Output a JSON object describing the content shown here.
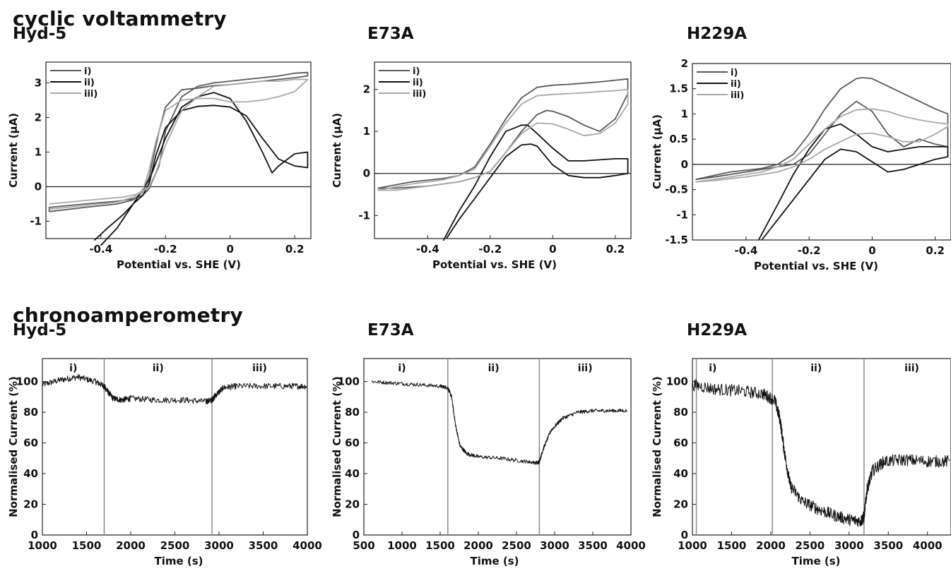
{
  "sections": {
    "cv_title": "cyclic voltammetry",
    "ca_title": "chronoamperometry"
  },
  "colors": {
    "trace_i": "#5a5a5a",
    "trace_ii": "#111111",
    "trace_iii": "#a8a8a8",
    "axis": "#222222",
    "divider": "#8a8a8a"
  },
  "chart_data": [
    {
      "type": "line",
      "title": "Hyd-5",
      "xlabel": "Potential vs. SHE  (V)",
      "ylabel": "Current (µA)",
      "xlim": [
        -0.57,
        0.25
      ],
      "ylim": [
        -1.5,
        3.6
      ],
      "xticks": [
        -0.4,
        -0.2,
        0,
        0.2
      ],
      "xtick_labels": [
        "-0.4",
        "-0.2",
        "0",
        "0.2"
      ],
      "yticks": [
        -1,
        0,
        1,
        2,
        3
      ],
      "ytick_labels": [
        "-1",
        "0",
        "1",
        "2",
        "3"
      ],
      "zero_line": true,
      "legend": [
        "i)",
        "ii)",
        "iii)"
      ],
      "legend_position": "top-left",
      "series": [
        {
          "name": "i)",
          "x": [
            -0.56,
            -0.45,
            -0.35,
            -0.3,
            -0.27,
            -0.25,
            -0.22,
            -0.2,
            -0.15,
            -0.1,
            -0.05,
            0,
            0.05,
            0.1,
            0.15,
            0.2,
            0.24,
            0.24,
            0.2,
            0.15,
            0.1,
            0.05,
            0,
            -0.05,
            -0.1,
            -0.15,
            -0.2,
            -0.22,
            -0.25,
            -0.27,
            -0.3,
            -0.35,
            -0.45,
            -0.56,
            -0.56
          ],
          "y": [
            -0.72,
            -0.6,
            -0.5,
            -0.38,
            -0.15,
            0.3,
            1.6,
            2.3,
            2.8,
            2.85,
            2.92,
            2.95,
            3,
            3.05,
            3.1,
            3.15,
            3.2,
            3.3,
            3.28,
            3.2,
            3.15,
            3.1,
            3.05,
            3,
            2.9,
            2.6,
            1.6,
            0.6,
            -0.05,
            -0.25,
            -0.35,
            -0.42,
            -0.5,
            -0.6,
            -0.72
          ]
        },
        {
          "name": "ii)",
          "x": [
            -0.42,
            -0.38,
            -0.33,
            -0.3,
            -0.27,
            -0.25,
            -0.23,
            -0.2,
            -0.15,
            -0.1,
            -0.05,
            0,
            0.05,
            0.1,
            0.15,
            0.2,
            0.24,
            0.24,
            0.2,
            0.15,
            0.13,
            0.1,
            0.05,
            0,
            -0.05,
            -0.1,
            -0.15,
            -0.2,
            -0.25,
            -0.3,
            -0.35,
            -0.4
          ],
          "y": [
            -1.55,
            -1.2,
            -0.8,
            -0.5,
            -0.25,
            0.1,
            0.9,
            1.7,
            2.2,
            2.32,
            2.35,
            2.3,
            2.05,
            1.4,
            0.8,
            0.6,
            0.55,
            1.0,
            0.95,
            0.6,
            0.4,
            1.0,
            1.9,
            2.55,
            2.72,
            2.6,
            2.3,
            1.4,
            0.2,
            -0.5,
            -1.2,
            -1.7
          ]
        },
        {
          "name": "iii)",
          "x": [
            -0.56,
            -0.45,
            -0.35,
            -0.3,
            -0.27,
            -0.25,
            -0.23,
            -0.2,
            -0.15,
            -0.1,
            -0.05,
            0,
            0.05,
            0.1,
            0.15,
            0.2,
            0.24,
            0.24,
            0.2,
            0.15,
            0.1,
            0.05,
            0,
            -0.05,
            -0.1,
            -0.15,
            -0.2,
            -0.23,
            -0.25,
            -0.28,
            -0.33,
            -0.45,
            -0.56
          ],
          "y": [
            -0.65,
            -0.55,
            -0.45,
            -0.3,
            -0.1,
            0.5,
            1.3,
            2.2,
            2.5,
            2.55,
            2.55,
            2.45,
            2.45,
            2.5,
            2.6,
            2.75,
            3.1,
            3.1,
            3.1,
            3.05,
            3.05,
            3.0,
            2.95,
            2.9,
            2.6,
            2.2,
            1.2,
            0.4,
            0.0,
            -0.2,
            -0.3,
            -0.4,
            -0.5
          ]
        }
      ]
    },
    {
      "type": "line",
      "title": "E73A",
      "xlabel": "Potential vs. SHE (V)",
      "ylabel": "Current (µA)",
      "xlim": [
        -0.57,
        0.25
      ],
      "ylim": [
        -1.55,
        2.65
      ],
      "xticks": [
        -0.4,
        -0.2,
        0,
        0.2
      ],
      "xtick_labels": [
        "-0.4",
        "-0.2",
        "0",
        "0.2"
      ],
      "yticks": [
        -1,
        0,
        1,
        2
      ],
      "ytick_labels": [
        "-1",
        "0",
        "1",
        "2"
      ],
      "zero_line": true,
      "legend": [
        "i)",
        "ii)",
        "iii)"
      ],
      "legend_position": "top-left",
      "series": [
        {
          "name": "i)",
          "x": [
            -0.56,
            -0.45,
            -0.35,
            -0.3,
            -0.25,
            -0.2,
            -0.15,
            -0.1,
            -0.05,
            0,
            0.05,
            0.1,
            0.15,
            0.2,
            0.24,
            0.24,
            0.2,
            0.15,
            0.1,
            0.05,
            0,
            -0.02,
            -0.05,
            -0.1,
            -0.15,
            -0.2,
            -0.25,
            -0.3,
            -0.4,
            -0.5,
            -0.56
          ],
          "y": [
            -0.35,
            -0.2,
            -0.12,
            -0.05,
            0.15,
            0.7,
            1.3,
            1.8,
            2.05,
            2.1,
            2.12,
            2.15,
            2.18,
            2.22,
            2.25,
            1.9,
            1.3,
            1.0,
            1.15,
            1.35,
            1.48,
            1.5,
            1.4,
            1.0,
            0.5,
            0.05,
            -0.1,
            -0.2,
            -0.3,
            -0.35,
            -0.35
          ]
        },
        {
          "name": "ii)",
          "x": [
            -0.34,
            -0.3,
            -0.25,
            -0.2,
            -0.15,
            -0.1,
            -0.07,
            -0.05,
            0,
            0.05,
            0.1,
            0.15,
            0.2,
            0.24,
            0.24,
            0.2,
            0.1,
            0.05,
            0,
            -0.05,
            -0.08,
            -0.1,
            -0.15,
            -0.2,
            -0.25,
            -0.3,
            -0.35
          ],
          "y": [
            -1.55,
            -1.1,
            -0.6,
            -0.1,
            0.4,
            0.68,
            0.7,
            0.65,
            0.2,
            -0.05,
            -0.1,
            -0.1,
            -0.05,
            0.0,
            0.35,
            0.35,
            0.3,
            0.3,
            0.6,
            0.95,
            1.15,
            1.15,
            1.0,
            0.4,
            -0.3,
            -0.9,
            -1.6
          ]
        },
        {
          "name": "iii)",
          "x": [
            -0.56,
            -0.45,
            -0.35,
            -0.3,
            -0.25,
            -0.2,
            -0.15,
            -0.1,
            -0.05,
            0,
            0.05,
            0.1,
            0.15,
            0.2,
            0.24,
            0.24,
            0.2,
            0.15,
            0.1,
            0.05,
            0,
            -0.05,
            -0.1,
            -0.15,
            -0.2,
            -0.25,
            -0.3,
            -0.4,
            -0.5,
            -0.56
          ],
          "y": [
            -0.4,
            -0.25,
            -0.15,
            -0.05,
            0.1,
            0.65,
            1.2,
            1.65,
            1.85,
            1.88,
            1.9,
            1.92,
            1.95,
            1.97,
            2.0,
            1.65,
            1.2,
            0.95,
            0.9,
            1.05,
            1.18,
            1.2,
            0.95,
            0.5,
            0.05,
            -0.1,
            -0.2,
            -0.3,
            -0.4,
            -0.4
          ]
        }
      ]
    },
    {
      "type": "line",
      "title": "H229A",
      "xlabel": "Potential vs. SHE (V)",
      "ylabel": "Current (µA)",
      "xlim": [
        -0.57,
        0.25
      ],
      "ylim": [
        -1.5,
        2.0
      ],
      "xticks": [
        -0.4,
        -0.2,
        0,
        0.2
      ],
      "xtick_labels": [
        "-0.4",
        "-0.2",
        "0",
        "0.2"
      ],
      "yticks": [
        -1.5,
        -1,
        -0.5,
        0,
        0.5,
        1,
        1.5,
        2
      ],
      "ytick_labels": [
        "-1.5",
        "-1",
        "-0.5",
        "0",
        "0.5",
        "1",
        "1.5",
        "2"
      ],
      "zero_line": true,
      "legend": [
        "i)",
        "ii)",
        "iii)"
      ],
      "legend_position": "top-left",
      "series": [
        {
          "name": "i)",
          "x": [
            -0.56,
            -0.45,
            -0.35,
            -0.3,
            -0.25,
            -0.2,
            -0.15,
            -0.1,
            -0.05,
            -0.03,
            0,
            0.05,
            0.1,
            0.15,
            0.2,
            0.24,
            0.24,
            0.2,
            0.15,
            0.1,
            0.05,
            0,
            -0.05,
            -0.1,
            -0.15,
            -0.2,
            -0.25,
            -0.3,
            -0.4,
            -0.5,
            -0.56
          ],
          "y": [
            -0.3,
            -0.15,
            -0.08,
            0.0,
            0.2,
            0.6,
            1.1,
            1.5,
            1.7,
            1.72,
            1.7,
            1.55,
            1.4,
            1.25,
            1.1,
            1.0,
            0.35,
            0.4,
            0.5,
            0.35,
            0.6,
            1.05,
            1.25,
            1.0,
            0.6,
            0.2,
            0.0,
            -0.05,
            -0.15,
            -0.25,
            -0.3
          ]
        },
        {
          "name": "ii)",
          "x": [
            -0.35,
            -0.3,
            -0.25,
            -0.2,
            -0.15,
            -0.1,
            -0.05,
            0,
            0.05,
            0.1,
            0.15,
            0.2,
            0.24,
            0.24,
            0.2,
            0.15,
            0.1,
            0.05,
            0,
            -0.05,
            -0.1,
            -0.15,
            -0.2,
            -0.25,
            -0.3,
            -0.36
          ],
          "y": [
            -1.5,
            -1.1,
            -0.7,
            -0.3,
            0.1,
            0.3,
            0.25,
            0.05,
            -0.15,
            -0.1,
            0.0,
            0.1,
            0.15,
            0.35,
            0.35,
            0.35,
            0.3,
            0.25,
            0.35,
            0.6,
            0.8,
            0.7,
            0.3,
            -0.2,
            -0.8,
            -1.5
          ]
        },
        {
          "name": "iii)",
          "x": [
            -0.56,
            -0.45,
            -0.35,
            -0.3,
            -0.25,
            -0.2,
            -0.15,
            -0.1,
            -0.05,
            0,
            0.05,
            0.1,
            0.15,
            0.2,
            0.24,
            0.24,
            0.2,
            0.15,
            0.1,
            0.05,
            0,
            -0.05,
            -0.1,
            -0.15,
            -0.2,
            -0.25,
            -0.3,
            -0.4,
            -0.5,
            -0.56
          ],
          "y": [
            -0.35,
            -0.25,
            -0.15,
            -0.05,
            0.1,
            0.4,
            0.7,
            0.95,
            1.08,
            1.1,
            1.05,
            0.95,
            0.88,
            0.83,
            0.8,
            0.75,
            0.6,
            0.45,
            0.45,
            0.55,
            0.62,
            0.6,
            0.45,
            0.3,
            0.1,
            -0.05,
            -0.15,
            -0.25,
            -0.32,
            -0.35
          ]
        }
      ]
    },
    {
      "type": "line",
      "title": "Hyd-5",
      "xlabel": "Time (s)",
      "ylabel": "Normalised Current (%)",
      "xlim": [
        1000,
        4000
      ],
      "ylim": [
        0,
        115
      ],
      "xticks": [
        1000,
        1500,
        2000,
        2500,
        3000,
        3500,
        4000
      ],
      "xtick_labels": [
        "1000",
        "1500",
        "2000",
        "2500",
        "3000",
        "3500",
        "4000"
      ],
      "yticks": [
        0,
        20,
        40,
        60,
        80,
        100
      ],
      "ytick_labels": [
        "0",
        "20",
        "40",
        "60",
        "80",
        "100"
      ],
      "dividers": [
        1700,
        2920
      ],
      "region_labels": [
        {
          "label": "i)",
          "x": 1350
        },
        {
          "label": "ii)",
          "x": 2310
        },
        {
          "label": "iii)",
          "x": 3460
        }
      ],
      "noise": 2.0,
      "series": [
        {
          "name": "",
          "x": [
            1000,
            1200,
            1400,
            1600,
            1700,
            1720,
            1800,
            1900,
            2000,
            2300,
            2600,
            2850,
            2920,
            2960,
            3050,
            3200,
            3500,
            3800,
            3990
          ],
          "y": [
            98,
            101,
            103,
            100,
            97,
            95,
            89,
            88,
            89,
            88,
            88,
            87,
            88,
            91,
            96,
            97,
            97,
            97,
            97
          ]
        }
      ]
    },
    {
      "type": "line",
      "title": "E73A",
      "xlabel": "Time (s)",
      "ylabel": "Normalised Current (%)",
      "xlim": [
        500,
        4000
      ],
      "ylim": [
        0,
        115
      ],
      "xticks": [
        500,
        1000,
        1500,
        2000,
        2500,
        3000,
        3500,
        4000
      ],
      "xtick_labels": [
        "500",
        "1000",
        "1500",
        "2000",
        "2500",
        "3000",
        "3500",
        "4000"
      ],
      "yticks": [
        0,
        20,
        40,
        60,
        80,
        100
      ],
      "ytick_labels": [
        "0",
        "20",
        "40",
        "60",
        "80",
        "100"
      ],
      "dividers": [
        1600,
        2800
      ],
      "region_labels": [
        {
          "label": "i)",
          "x": 1000
        },
        {
          "label": "ii)",
          "x": 2200
        },
        {
          "label": "iii)",
          "x": 3400
        }
      ],
      "noise": 1.2,
      "series": [
        {
          "name": "",
          "x": [
            600,
            900,
            1200,
            1500,
            1600,
            1650,
            1700,
            1760,
            1850,
            2000,
            2300,
            2600,
            2780,
            2800,
            2850,
            2950,
            3100,
            3300,
            3500,
            3700,
            3950
          ],
          "y": [
            100,
            99,
            98,
            97,
            96,
            90,
            72,
            58,
            53,
            51,
            50,
            48,
            47,
            48,
            56,
            68,
            76,
            80,
            81,
            81,
            81
          ]
        }
      ]
    },
    {
      "type": "line",
      "title": "H229A",
      "xlabel": "Time (s)",
      "ylabel": "Normalised Current (%)",
      "xlim": [
        1000,
        4300
      ],
      "ylim": [
        0,
        115
      ],
      "xticks": [
        1000,
        1500,
        2000,
        2500,
        3000,
        3500,
        4000
      ],
      "xtick_labels": [
        "1000",
        "1500",
        "2000",
        "2500",
        "3000",
        "3500",
        "4000"
      ],
      "yticks": [
        0,
        20,
        40,
        60,
        80,
        100
      ],
      "ytick_labels": [
        "0",
        "20",
        "40",
        "60",
        "80",
        "100"
      ],
      "dividers": [
        1050,
        2020,
        3190
      ],
      "region_labels": [
        {
          "label": "i)",
          "x": 1260
        },
        {
          "label": "ii)",
          "x": 2580
        },
        {
          "label": "iii)",
          "x": 3800
        }
      ],
      "noise": 4.0,
      "series": [
        {
          "name": "",
          "x": [
            1000,
            1300,
            1600,
            1900,
            2050,
            2120,
            2180,
            2250,
            2400,
            2600,
            2800,
            3000,
            3150,
            3190,
            3230,
            3300,
            3450,
            3700,
            4000,
            4280
          ],
          "y": [
            98,
            95,
            94,
            92,
            88,
            75,
            52,
            32,
            22,
            17,
            13,
            10,
            9,
            12,
            30,
            42,
            48,
            49,
            48,
            48
          ]
        }
      ]
    }
  ]
}
